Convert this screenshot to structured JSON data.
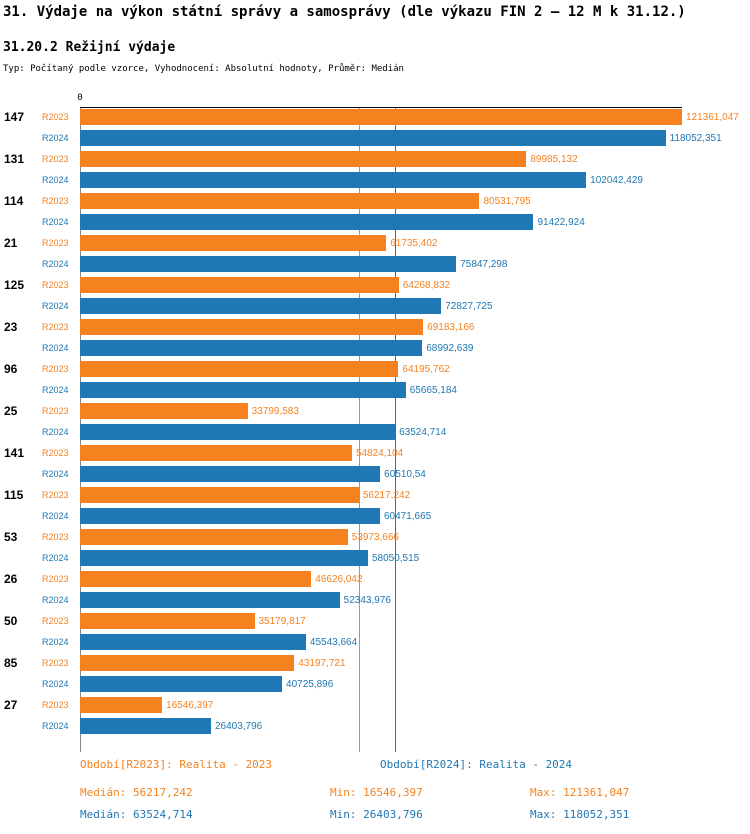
{
  "header": {
    "title": "31. Výdaje na výkon státní správy a samosprávy (dle výkazu FIN 2 – 12 M k 31.12.)",
    "subtitle": "31.20.2 Režijní výdaje",
    "meta": "Typ: Počítaný podle vzorce, Vyhodnocení: Absolutní hodnoty, Průměr: Medián"
  },
  "chart_data": {
    "type": "bar",
    "orientation": "horizontal",
    "title": "31.20.2 Režijní výdaje",
    "xlabel": "",
    "ylabel": "",
    "axis_zero_label": "0",
    "xlim": [
      0,
      121361.047
    ],
    "grid": false,
    "categories": [
      "147",
      "131",
      "114",
      "21",
      "125",
      "23",
      "96",
      "25",
      "141",
      "115",
      "53",
      "26",
      "50",
      "85",
      "27"
    ],
    "series": [
      {
        "name": "R2023",
        "color": "#F5821F",
        "values": [
          121361.047,
          89985.132,
          80531.795,
          61735.402,
          64268.832,
          69183.166,
          64195.762,
          33799.583,
          54824.104,
          56217.242,
          53973.666,
          46626.042,
          35179.817,
          43197.721,
          16546.397
        ],
        "labels": [
          "121361,047",
          "89985,132",
          "80531,795",
          "61735,402",
          "64268,832",
          "69183,166",
          "64195,762",
          "33799,583",
          "54824,104",
          "56217,242",
          "53973,666",
          "46626,042",
          "35179,817",
          "43197,721",
          "16546,397"
        ]
      },
      {
        "name": "R2024",
        "color": "#1F77B4",
        "values": [
          118052.351,
          102042.429,
          91422.924,
          75847.298,
          72827.725,
          68992.639,
          65665.184,
          63524.714,
          60510.54,
          60471.665,
          58050.515,
          52343.976,
          45543.664,
          40725.896,
          26403.796
        ],
        "labels": [
          "118052,351",
          "102042,429",
          "91422,924",
          "75847,298",
          "72827,725",
          "68992,639",
          "65665,184",
          "63524,714",
          "60510,54",
          "60471,665",
          "58050,515",
          "52343,976",
          "45543,664",
          "40725,896",
          "26403,796"
        ]
      }
    ],
    "reference_lines": [
      {
        "name": "median-r2023",
        "value": 56217.242,
        "color": "#F5821F"
      },
      {
        "name": "median-r2024",
        "value": 63524.714,
        "color": "#1F77B4"
      },
      {
        "name": "axis-zero",
        "value": 0,
        "color": "#888888"
      }
    ],
    "legend": [
      {
        "name": "r2023",
        "label": "Období[R2023]: Realita - 2023",
        "color": "#F5821F"
      },
      {
        "name": "r2024",
        "label": "Období[R2024]: Realita - 2024",
        "color": "#1F77B4"
      }
    ],
    "stats": [
      {
        "name": "r2023",
        "color": "#F5821F",
        "items": [
          "Medián: 56217,242",
          "Min: 16546,397",
          "Max: 121361,047"
        ]
      },
      {
        "name": "r2024",
        "color": "#1F77B4",
        "items": [
          "Medián: 63524,714",
          "Min: 26403,796",
          "Max: 118052,351"
        ]
      }
    ]
  }
}
